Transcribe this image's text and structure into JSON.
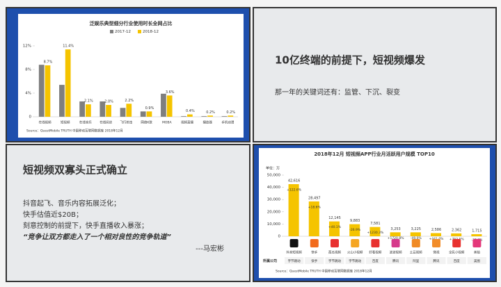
{
  "chart_data": [
    {
      "type": "bar",
      "title": "泛娱乐典型细分行业使用时长全网占比",
      "categories": [
        "在线视频",
        "短视频",
        "在线音乐",
        "在线阅读",
        "飞行射击",
        "网络K歌",
        "MOBA",
        "视频直播",
        "播放器",
        "手机动漫"
      ],
      "series": [
        {
          "name": "2017-12",
          "color": "#7f7f7f",
          "values": [
            8.8,
            5.4,
            2.6,
            2.6,
            1.5,
            0.9,
            3.9,
            0.1,
            0.1,
            0.1
          ]
        },
        {
          "name": "2018-12",
          "color": "#f5c400",
          "values": [
            8.7,
            11.4,
            2.1,
            2.0,
            2.2,
            0.9,
            3.6,
            0.4,
            0.2,
            0.2
          ],
          "value_labels": [
            "8.7%",
            "11.4%",
            "2.1%",
            "2.0%",
            "2.2%",
            "0.9%",
            "3.6%",
            "0.4%",
            "0.2%",
            "0.2%"
          ]
        }
      ],
      "ylim": [
        0,
        12
      ],
      "yticks": [
        0,
        {
          "value": 4,
          "label": "4%"
        },
        {
          "value": 8,
          "label": "8%"
        },
        {
          "value": 12,
          "label": "12%"
        }
      ],
      "grid": false,
      "legend": "top",
      "source": "Source：QuestMobile TRUTH 中国移动互联网数据库 2018年12月"
    },
    {
      "type": "bar",
      "title": "2018年12月 短视频APP行业月活跃用户规模 TOP10",
      "y_label": "单位：万",
      "categories": [
        "抖音短视频",
        "快手",
        "西瓜视频",
        "火山小视频",
        "好看视频",
        "波波视频",
        "土豆视频",
        "微视",
        "全民小视频",
        "美拍"
      ],
      "values": [
        42616,
        28497,
        12145,
        9883,
        7581,
        3253,
        3225,
        2586,
        2362,
        1715
      ],
      "value_labels": [
        "42,616",
        "28,497",
        "12,145",
        "9,883",
        "7,581",
        "3,253",
        "3,225",
        "2,586",
        "2,362",
        "1,715"
      ],
      "color": "#f5c400",
      "annotations": [
        "+122.6%",
        "+18.6%",
        "+40.1%",
        "-26.9%",
        "+1230.3%",
        "+1720.8%",
        "-49.0%",
        "+441.0%",
        "+752.5%",
        "-37.8%"
      ],
      "company_label": "所属公司",
      "companies": [
        "字节跳动",
        "快手",
        "字节跳动",
        "字节跳动",
        "百度",
        "腾讯",
        "阿里",
        "腾讯",
        "百度",
        "美图"
      ],
      "ylim": [
        0,
        50000
      ],
      "yticks": [
        0,
        {
          "value": 10000,
          "label": "10,000"
        },
        {
          "value": 20000,
          "label": "20,000"
        },
        {
          "value": 30000,
          "label": "30,000"
        },
        {
          "value": 40000,
          "label": "40,000"
        },
        {
          "value": 50000,
          "label": "50,000"
        }
      ],
      "grid": false,
      "source": "Source：QuestMobile TRUTH 中国移动互联网数据库 2018年12月"
    }
  ],
  "panel_top_right": {
    "heading": "10亿终端的前提下，短视频爆发",
    "text": "那一年的关键词还有：监管、下沉、裂变"
  },
  "panel_bottom_left": {
    "heading": "短视频双寡头正式确立",
    "lines": [
      "抖音起飞、音乐内容拓展泛化；",
      "快手估值近$20B；",
      "刻意控制的前提下，快手直播收入暴涨；"
    ],
    "quote": "“竞争让双方都走入了一个相对良性的竞争轨道”",
    "author": "---马宏彬"
  }
}
